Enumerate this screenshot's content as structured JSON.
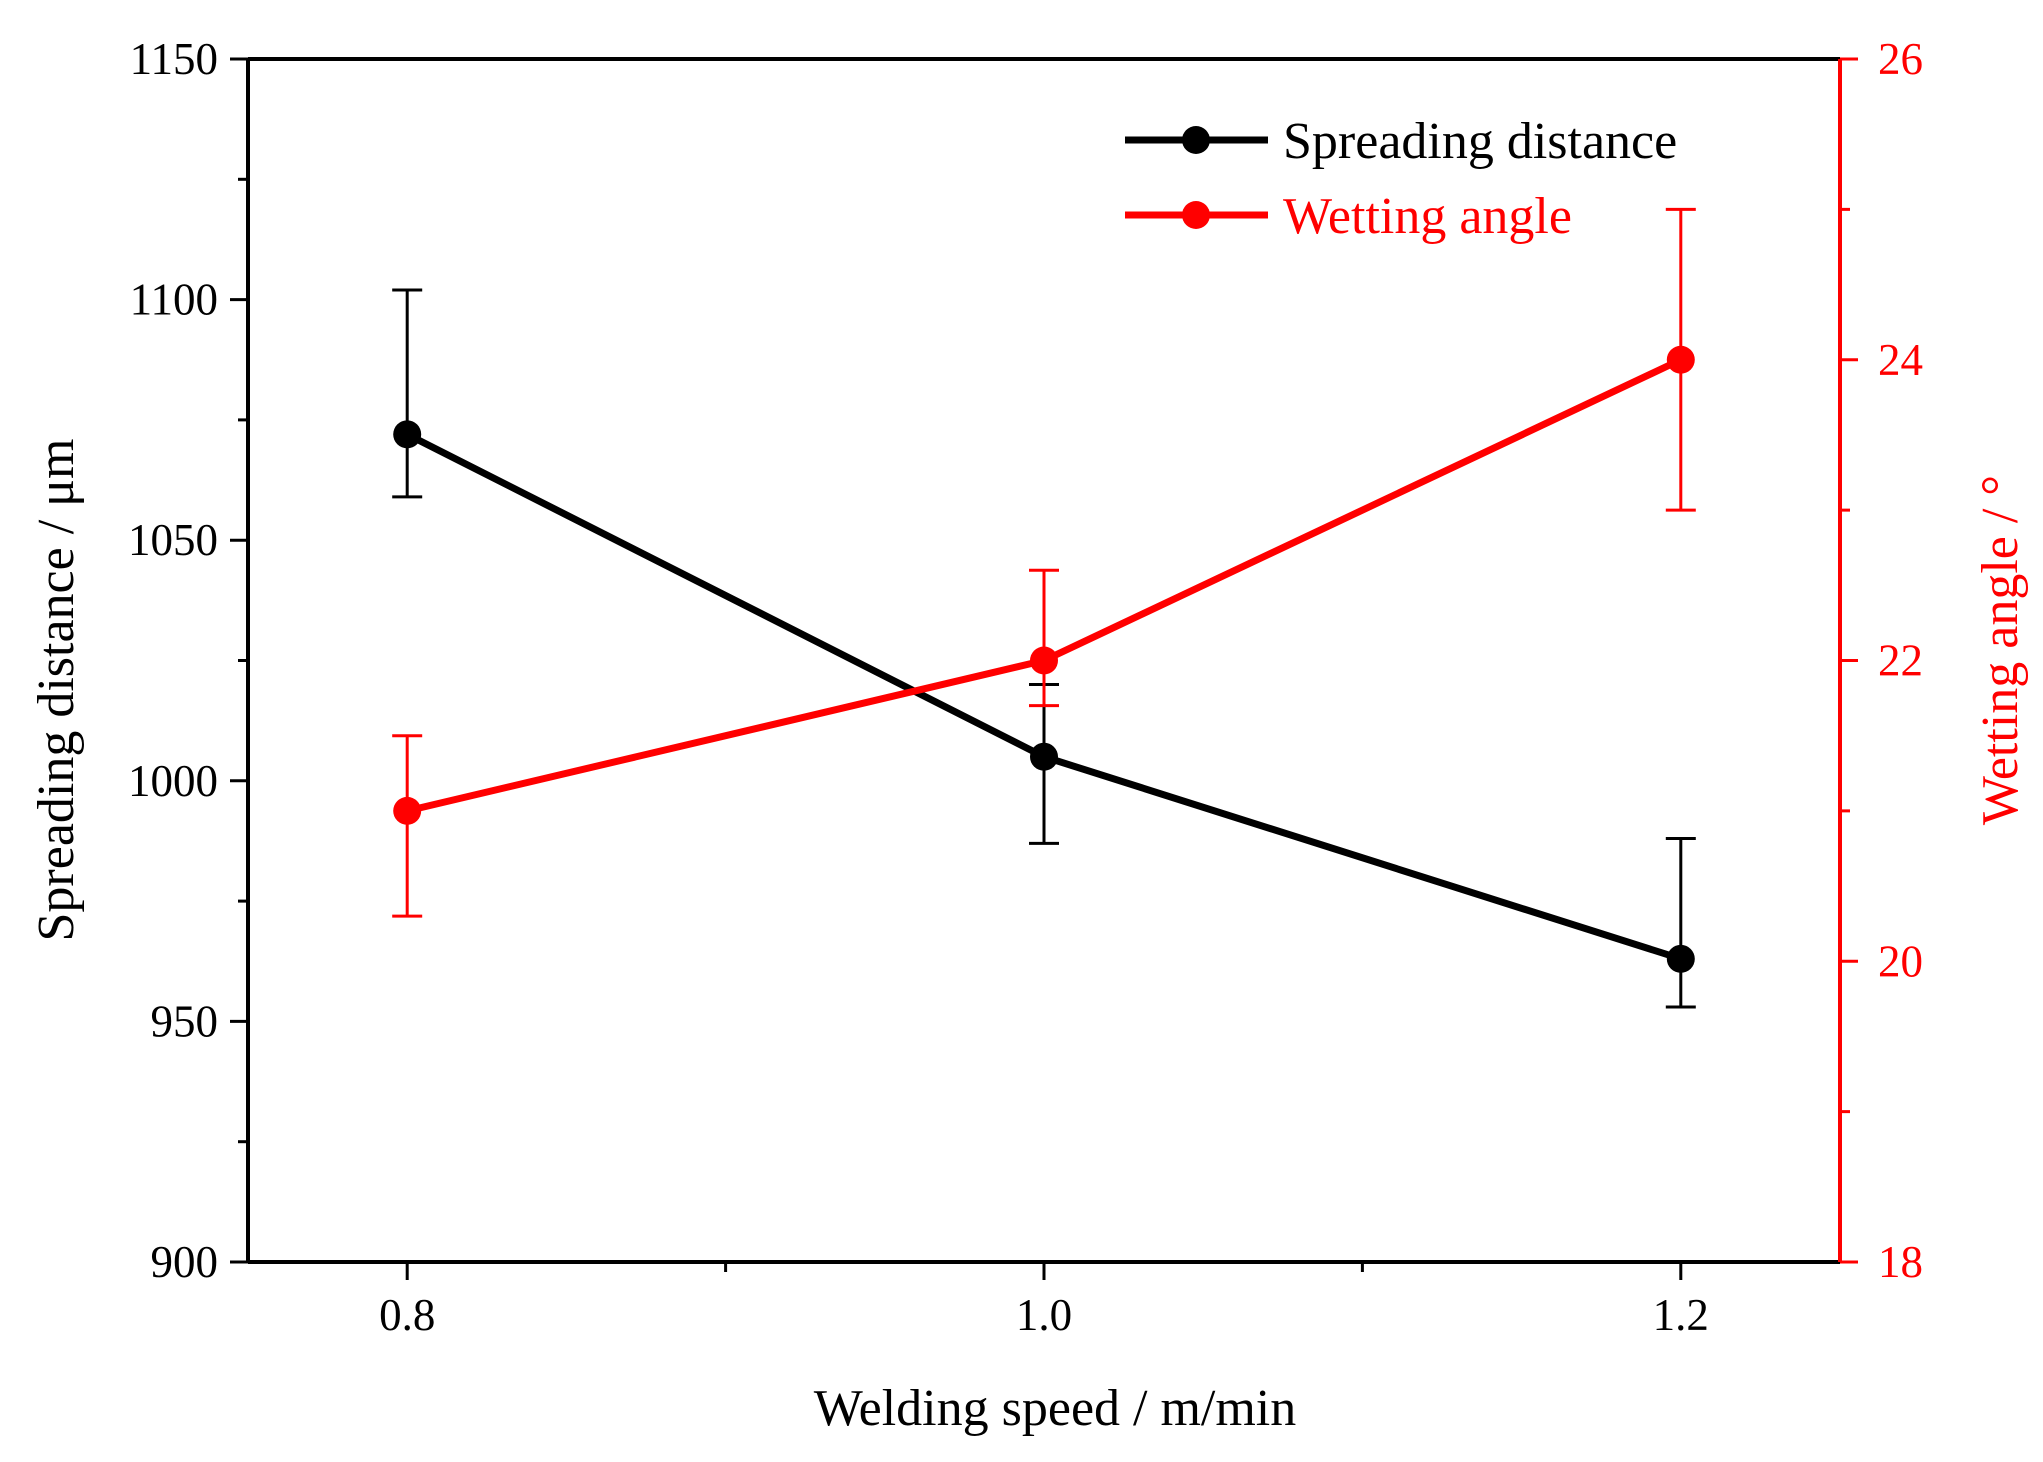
{
  "chart_data": {
    "type": "line",
    "xlabel": "Welding speed / m/min",
    "ylabel": "Spreading distance / μm",
    "y2label": "Wetting angle / °",
    "xlim": [
      0.75,
      1.25
    ],
    "ylim": [
      900,
      1150
    ],
    "y2lim": [
      18,
      26
    ],
    "x_ticks": [
      {
        "value": 0.8,
        "label": "0.8"
      },
      {
        "value": 1.0,
        "label": "1.0"
      },
      {
        "value": 1.2,
        "label": "1.2"
      }
    ],
    "x_minor_ticks": [
      0.9,
      1.1
    ],
    "y_ticks": [
      {
        "value": 900,
        "label": "900"
      },
      {
        "value": 950,
        "label": "950"
      },
      {
        "value": 1000,
        "label": "1000"
      },
      {
        "value": 1050,
        "label": "1050"
      },
      {
        "value": 1100,
        "label": "1100"
      },
      {
        "value": 1150,
        "label": "1150"
      }
    ],
    "y_minor_ticks": [
      925,
      975,
      1025,
      1075,
      1125
    ],
    "y2_ticks": [
      {
        "value": 18,
        "label": "18"
      },
      {
        "value": 20,
        "label": "20"
      },
      {
        "value": 22,
        "label": "22"
      },
      {
        "value": 24,
        "label": "24"
      },
      {
        "value": 26,
        "label": "26"
      }
    ],
    "y2_minor_ticks": [
      19,
      21,
      23,
      25
    ],
    "legend_position": "top-right",
    "series": [
      {
        "name": "Spreading distance",
        "axis": "left",
        "color": "#000000",
        "x": [
          0.8,
          1.0,
          1.2
        ],
        "y": [
          1072,
          1005,
          963
        ],
        "error_low": [
          1059,
          987,
          953
        ],
        "error_high": [
          1102,
          1020,
          988
        ]
      },
      {
        "name": "Wetting angle",
        "axis": "right",
        "color": "#ff0000",
        "x": [
          0.8,
          1.0,
          1.2
        ],
        "y": [
          21.0,
          22.0,
          24.0
        ],
        "error_low": [
          20.3,
          21.7,
          23.0
        ],
        "error_high": [
          21.5,
          22.6,
          25.0
        ]
      }
    ]
  }
}
